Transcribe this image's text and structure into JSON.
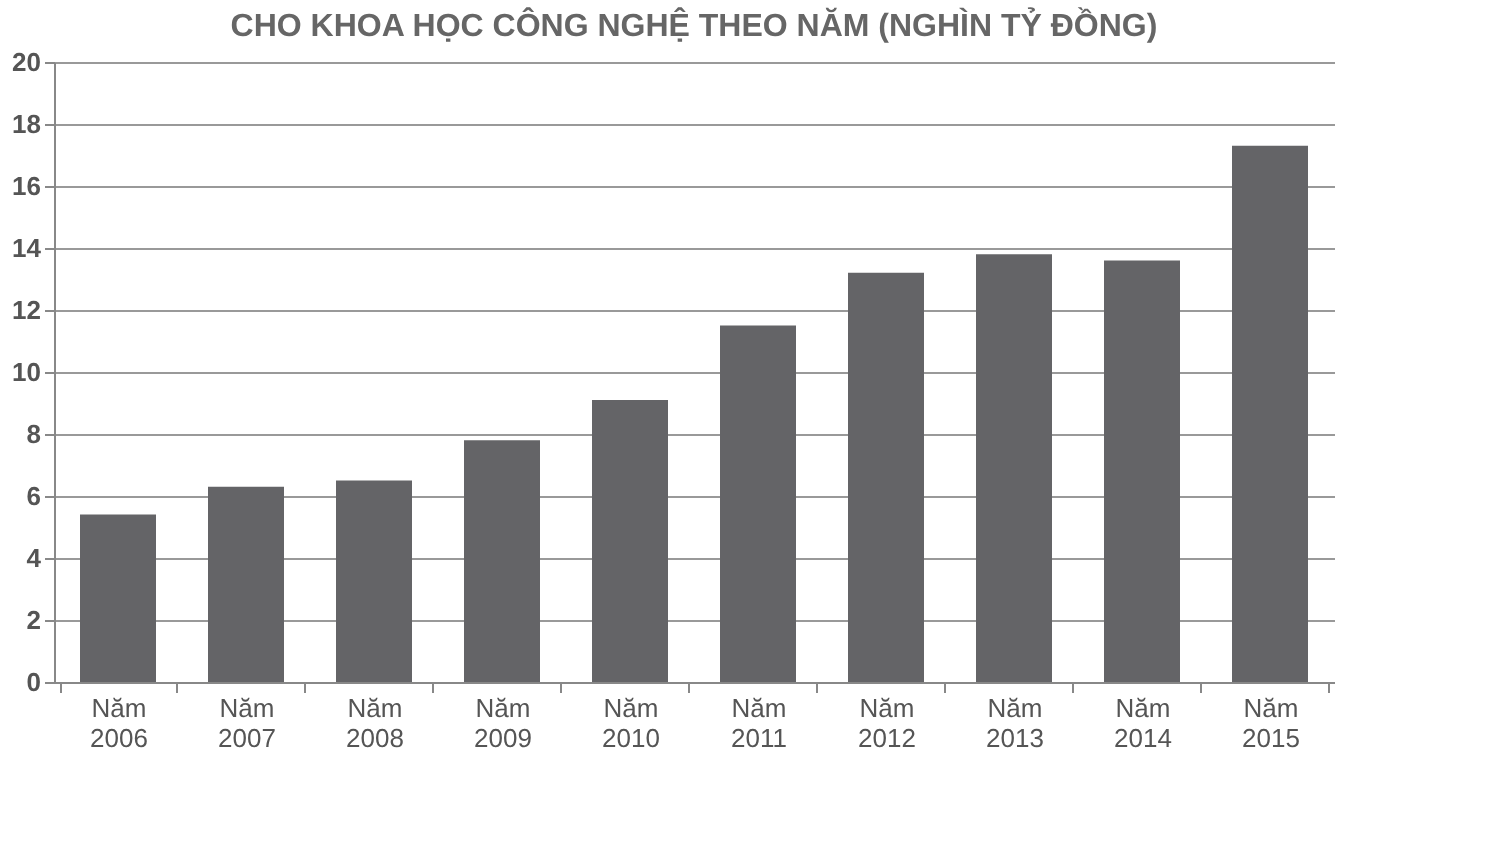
{
  "chart_data": {
    "type": "bar",
    "title": "CHO KHOA HỌC CÔNG NGHỆ THEO NĂM (NGHÌN TỶ ĐỒNG)",
    "categories": [
      "Năm 2006",
      "Năm 2007",
      "Năm 2008",
      "Năm 2009",
      "Năm 2010",
      "Năm 2011",
      "Năm 2012",
      "Năm 2013",
      "Năm 2014",
      "Năm 2015"
    ],
    "values": [
      5.4,
      6.3,
      6.5,
      7.8,
      9.1,
      11.5,
      13.2,
      13.8,
      13.6,
      17.3
    ],
    "color": "#646467",
    "ylim": [
      0,
      20
    ],
    "yticks": [
      0,
      2,
      4,
      6,
      8,
      10,
      12,
      14,
      16,
      18,
      20
    ],
    "grid": "y"
  }
}
